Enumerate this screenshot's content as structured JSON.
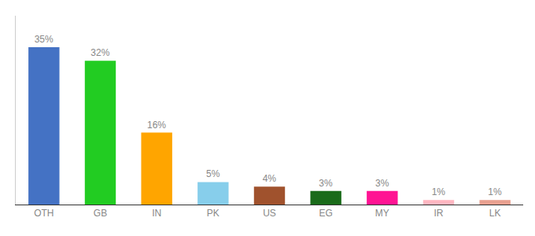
{
  "chart_data": {
    "type": "bar",
    "categories": [
      "OTH",
      "GB",
      "IN",
      "PK",
      "US",
      "EG",
      "MY",
      "IR",
      "LK"
    ],
    "values": [
      35,
      32,
      16,
      5,
      4,
      3,
      3,
      1,
      1
    ],
    "value_labels": [
      "35%",
      "32%",
      "16%",
      "5%",
      "4%",
      "3%",
      "3%",
      "1%",
      "1%"
    ],
    "colors": [
      "#4472C4",
      "#22CC22",
      "#FFA500",
      "#87CEEB",
      "#A0522D",
      "#1A6B1A",
      "#FF1493",
      "#FFB6C1",
      "#E8A090"
    ],
    "ylim": [
      0,
      42
    ],
    "grid": false,
    "data_labels": true,
    "tick_labels": "x"
  }
}
